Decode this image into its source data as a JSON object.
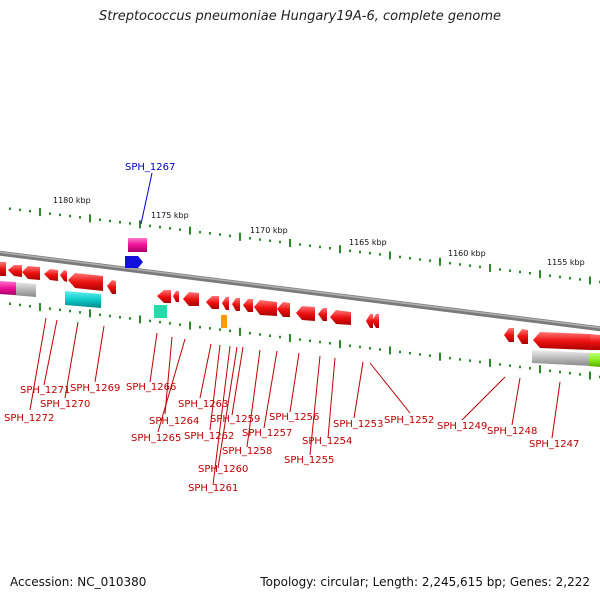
{
  "title": "Streptococcus pneumoniae Hungary19A-6, complete genome",
  "footer": {
    "accession": "Accession: NC_010380",
    "summary": "Topology: circular; Length: 2,245,615 bp; Genes: 2,222"
  },
  "scale_labels": [
    "1180 kbp",
    "1175 kbp",
    "1170 kbp",
    "1165 kbp",
    "1160 kbp",
    "1155 kbp"
  ],
  "gene_labels": [
    "SPH_1267",
    "SPH_1271",
    "SPH_1272",
    "SPH_1270",
    "SPH_1269",
    "SPH_1266",
    "SPH_1264",
    "SPH_1265",
    "SPH_1263",
    "SPH_1262",
    "SPH_1259",
    "SPH_1260",
    "SPH_1261",
    "SPH_1258",
    "SPH_1257",
    "SPH_1256",
    "SPH_1255",
    "SPH_1254",
    "SPH_1253",
    "SPH_1252",
    "SPH_1249",
    "SPH_1248",
    "SPH_1247"
  ],
  "colors": {
    "gene_red": "#ee1111",
    "backbone": "#7a7a7a",
    "tick_green": "#2a8a2a",
    "label_red": "#c00000",
    "label_blue": "#0000cc"
  }
}
